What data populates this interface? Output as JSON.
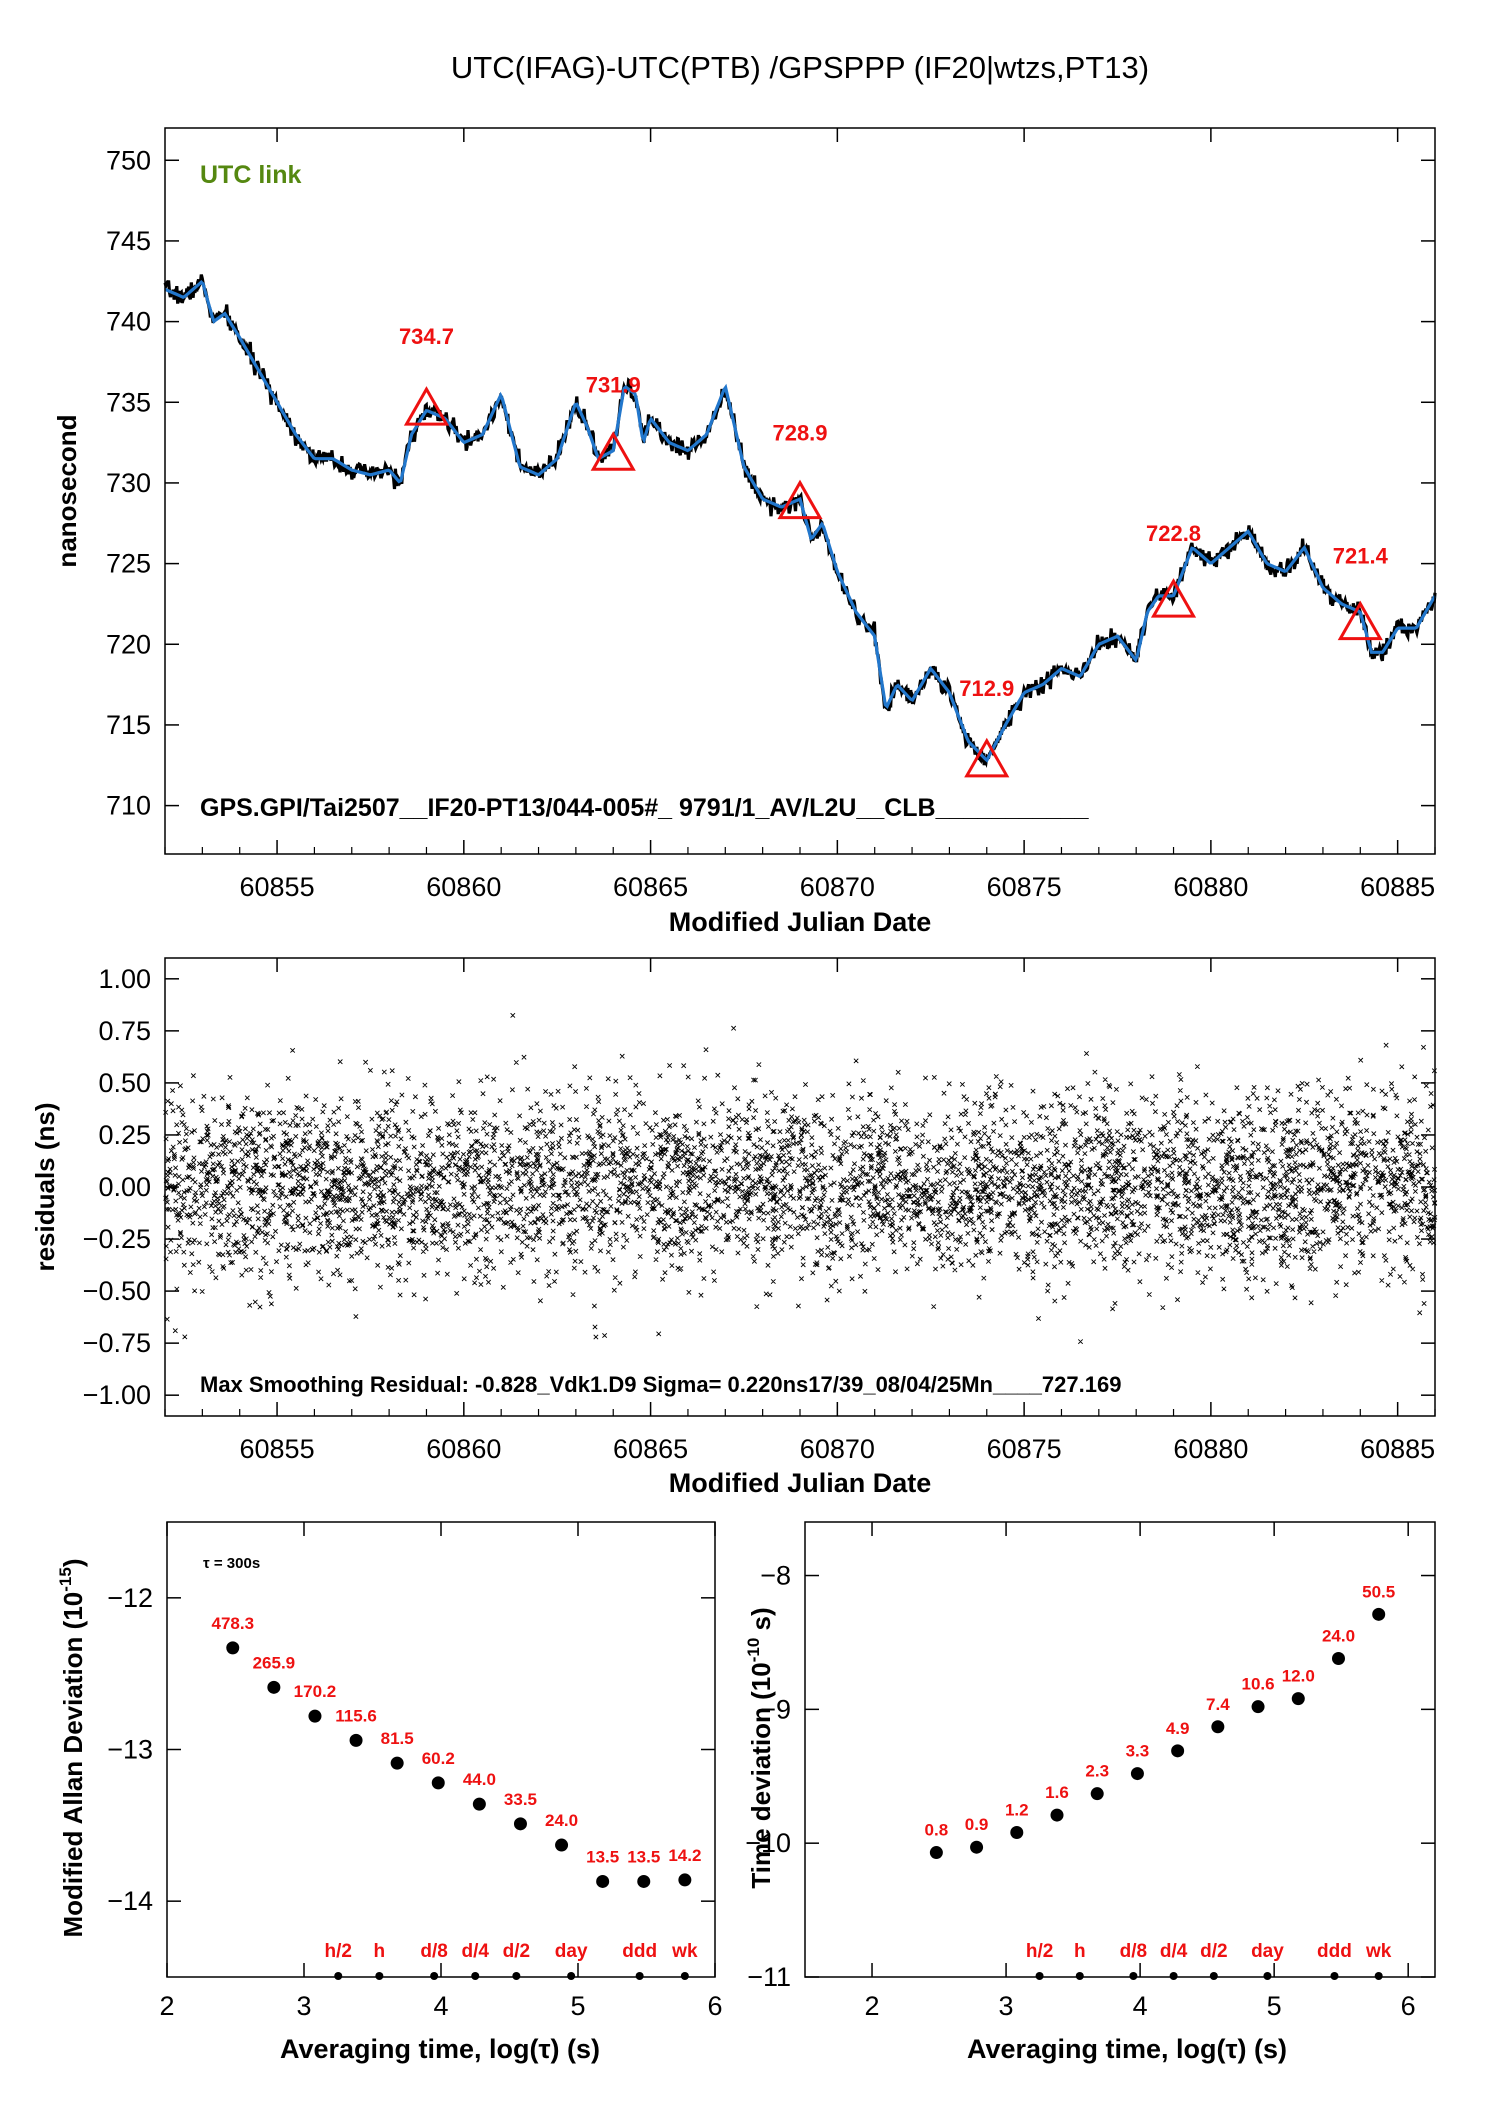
{
  "figure_title": "UTC(IFAG)-UTC(PTB)  /GPSPPP  (IF20|wtzs,PT13)",
  "colors": {
    "red": "#ee1111",
    "blue": "#2277cc",
    "green": "#558811",
    "black": "#000000"
  },
  "chart_data": [
    {
      "type": "line",
      "panel": "top",
      "title": "",
      "label_top_left": "UTC link",
      "annotation_bottom": "GPS.GPI/Tai2507__IF20-PT13/044-005#_  9791/1_AV/L2U__CLB___________",
      "xlabel": "Modified Julian Date",
      "ylabel": "nanosecond",
      "xlim": [
        60852,
        60886
      ],
      "ylim": [
        707,
        752
      ],
      "x_ticks": [
        60855,
        60860,
        60865,
        60870,
        60875,
        60880,
        60885
      ],
      "y_ticks": [
        710,
        715,
        720,
        725,
        730,
        735,
        740,
        745,
        750
      ],
      "series": [
        {
          "kind": "smoothed",
          "x": [
            60852.0,
            60852.5,
            60853.0,
            60853.3,
            60853.6,
            60854.0,
            60854.5,
            60855.0,
            60855.5,
            60856.0,
            60856.5,
            60857.0,
            60857.5,
            60858.0,
            60858.3,
            60858.6,
            60859.0,
            60859.5,
            60860.0,
            60860.5,
            60861.0,
            60861.5,
            60862.0,
            60862.5,
            60863.0,
            60863.3,
            60863.6,
            60864.0,
            60864.3,
            60864.6,
            60864.8,
            60865.0,
            60865.5,
            60866.0,
            60866.5,
            60867.0,
            60867.5,
            60868.0,
            60868.5,
            60869.0,
            60869.3,
            60869.6,
            60870.0,
            60870.5,
            60871.0,
            60871.3,
            60871.6,
            60872.0,
            60872.5,
            60873.0,
            60873.5,
            60874.0,
            60874.5,
            60875.0,
            60875.5,
            60876.0,
            60876.5,
            60877.0,
            60877.5,
            60878.0,
            60878.3,
            60878.6,
            60879.0,
            60879.5,
            60880.0,
            60880.5,
            60881.0,
            60881.5,
            60882.0,
            60882.5,
            60883.0,
            60883.5,
            60884.0,
            60884.3,
            60884.6,
            60885.0,
            60885.5,
            60886.0
          ],
          "y": [
            742.0,
            741.5,
            742.5,
            740.0,
            740.5,
            739.0,
            737.0,
            735.0,
            733.0,
            731.5,
            731.5,
            730.8,
            730.5,
            730.8,
            730.0,
            733.0,
            734.5,
            734.0,
            732.5,
            733.0,
            735.5,
            731.0,
            730.5,
            731.5,
            735.0,
            733.5,
            731.5,
            732.0,
            736.0,
            735.5,
            732.5,
            734.0,
            732.5,
            732.0,
            733.0,
            736.0,
            731.0,
            729.0,
            728.5,
            729.0,
            726.5,
            727.5,
            724.5,
            722.0,
            720.5,
            716.0,
            717.5,
            716.5,
            718.5,
            717.0,
            714.0,
            712.8,
            715.0,
            717.0,
            717.5,
            718.5,
            718.0,
            720.0,
            720.5,
            719.0,
            722.0,
            723.0,
            723.0,
            726.0,
            725.0,
            726.0,
            727.0,
            725.0,
            724.5,
            726.0,
            723.5,
            722.5,
            722.0,
            719.5,
            719.5,
            721.0,
            721.0,
            723.0
          ]
        },
        {
          "kind": "markers",
          "x": [
            60859,
            60864,
            60869,
            60874,
            60879,
            60884
          ],
          "values": [
            734.7,
            731.9,
            728.9,
            712.9,
            722.8,
            721.4
          ],
          "labels": [
            "734.7",
            "731.9",
            "728.9",
            "712.9",
            "722.8",
            "721.4"
          ]
        }
      ]
    },
    {
      "type": "scatter",
      "panel": "middle",
      "title": "",
      "annotation_bottom": "Max Smoothing Residual: -0.828_Vdk1.D9  Sigma= 0.220ns17/39_08/04/25Mn____727.169",
      "xlabel": "Modified Julian Date",
      "ylabel": "residuals (ns)",
      "xlim": [
        60852,
        60886
      ],
      "ylim": [
        -1.1,
        1.1
      ],
      "x_ticks": [
        60855,
        60860,
        60865,
        60870,
        60875,
        60880,
        60885
      ],
      "y_ticks": [
        -1.0,
        -0.75,
        -0.5,
        -0.25,
        0.0,
        0.25,
        0.5,
        0.75,
        1.0
      ],
      "y_tick_labels": [
        "−1.00",
        "−0.75",
        "−0.50",
        "−0.25",
        "0.00",
        "0.25",
        "0.50",
        "0.75",
        "1.00"
      ],
      "sigma": 0.22,
      "max_residual": -0.828,
      "series": []
    },
    {
      "type": "scatter",
      "panel": "bottom-left",
      "title": "",
      "label_top_left": "τ = 300s",
      "xlabel": "Averaging time, log(τ) (s)",
      "ylabel_main": "Modified Allan Deviation (10",
      "ylabel_exp": "-15",
      "ylabel_end": ")",
      "xlim": [
        2,
        6
      ],
      "ylim": [
        -14.5,
        -11.5
      ],
      "x_ticks": [
        2,
        3,
        4,
        5,
        6
      ],
      "y_ticks": [
        -14,
        -13,
        -12
      ],
      "y_tick_labels": [
        "−14",
        "−13",
        "−12"
      ],
      "x": [
        2.48,
        2.78,
        3.08,
        3.38,
        3.68,
        3.98,
        4.28,
        4.58,
        4.88,
        5.18,
        5.48,
        5.78
      ],
      "y": [
        -12.33,
        -12.59,
        -12.78,
        -12.94,
        -13.09,
        -13.22,
        -13.36,
        -13.49,
        -13.63,
        -13.87,
        -13.87,
        -13.86
      ],
      "labels": [
        "478.3",
        "265.9",
        "170.2",
        "115.6",
        "81.5",
        "60.2",
        "44.0",
        "33.5",
        "24.0",
        "13.5",
        "13.5",
        "14.2"
      ],
      "markers": {
        "x": [
          3.25,
          3.55,
          3.95,
          4.25,
          4.55,
          4.95,
          5.45,
          5.78
        ],
        "labels": [
          "h/2",
          "h",
          "d/8",
          "d/4",
          "d/2",
          "day",
          "ddd",
          "wk"
        ]
      }
    },
    {
      "type": "scatter",
      "panel": "bottom-right",
      "title": "",
      "xlabel": "Averaging time, log(τ) (s)",
      "ylabel_main": "Time deviation (10",
      "ylabel_exp": "-10",
      "ylabel_end": " s)",
      "xlim": [
        1.5,
        6.2
      ],
      "ylim": [
        -11.0,
        -7.6
      ],
      "x_ticks": [
        2,
        3,
        4,
        5,
        6
      ],
      "y_ticks": [
        -11,
        -10,
        -9,
        -8
      ],
      "y_tick_labels": [
        "−11",
        "−10",
        "−9",
        "−8"
      ],
      "x": [
        2.48,
        2.78,
        3.08,
        3.38,
        3.68,
        3.98,
        4.28,
        4.58,
        4.88,
        5.18,
        5.48,
        5.78
      ],
      "y": [
        -10.07,
        -10.03,
        -9.92,
        -9.79,
        -9.63,
        -9.48,
        -9.31,
        -9.13,
        -8.98,
        -8.92,
        -8.62,
        -8.29
      ],
      "labels": [
        "0.8",
        "0.9",
        "1.2",
        "1.6",
        "2.3",
        "3.3",
        "4.9",
        "7.4",
        "10.6",
        "12.0",
        "24.0",
        "50.5"
      ],
      "markers": {
        "x": [
          3.25,
          3.55,
          3.95,
          4.25,
          4.55,
          4.95,
          5.45,
          5.78
        ],
        "labels": [
          "h/2",
          "h",
          "d/8",
          "d/4",
          "d/2",
          "day",
          "ddd",
          "wk"
        ]
      }
    }
  ]
}
